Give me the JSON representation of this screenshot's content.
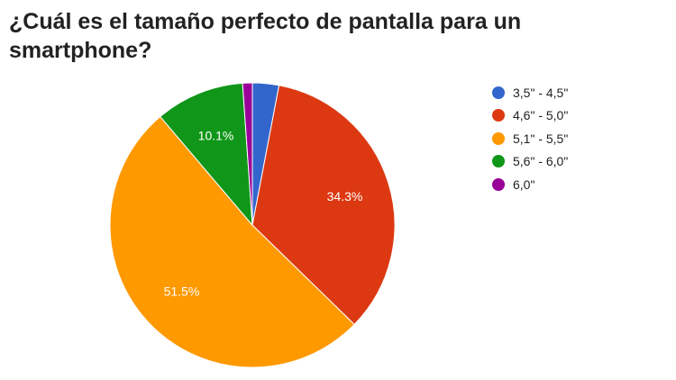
{
  "chart_data": {
    "type": "pie",
    "title": "¿Cuál es el tamaño perfecto de pantalla para un smartphone?",
    "categories": [
      "3,5\" - 4,5\"",
      "4,6\" - 5,0\"",
      "5,1\" - 5,5\"",
      "5,6\" - 6,0\"",
      "6,0\""
    ],
    "values": [
      3.0,
      34.3,
      51.5,
      10.1,
      1.1
    ],
    "data_labels": [
      "",
      "34.3%",
      "51.5%",
      "10.1%",
      ""
    ],
    "colors": [
      "#3366cc",
      "#dc3912",
      "#ff9900",
      "#109618",
      "#990099"
    ],
    "legend_position": "right",
    "start_angle": "top, clockwise"
  }
}
